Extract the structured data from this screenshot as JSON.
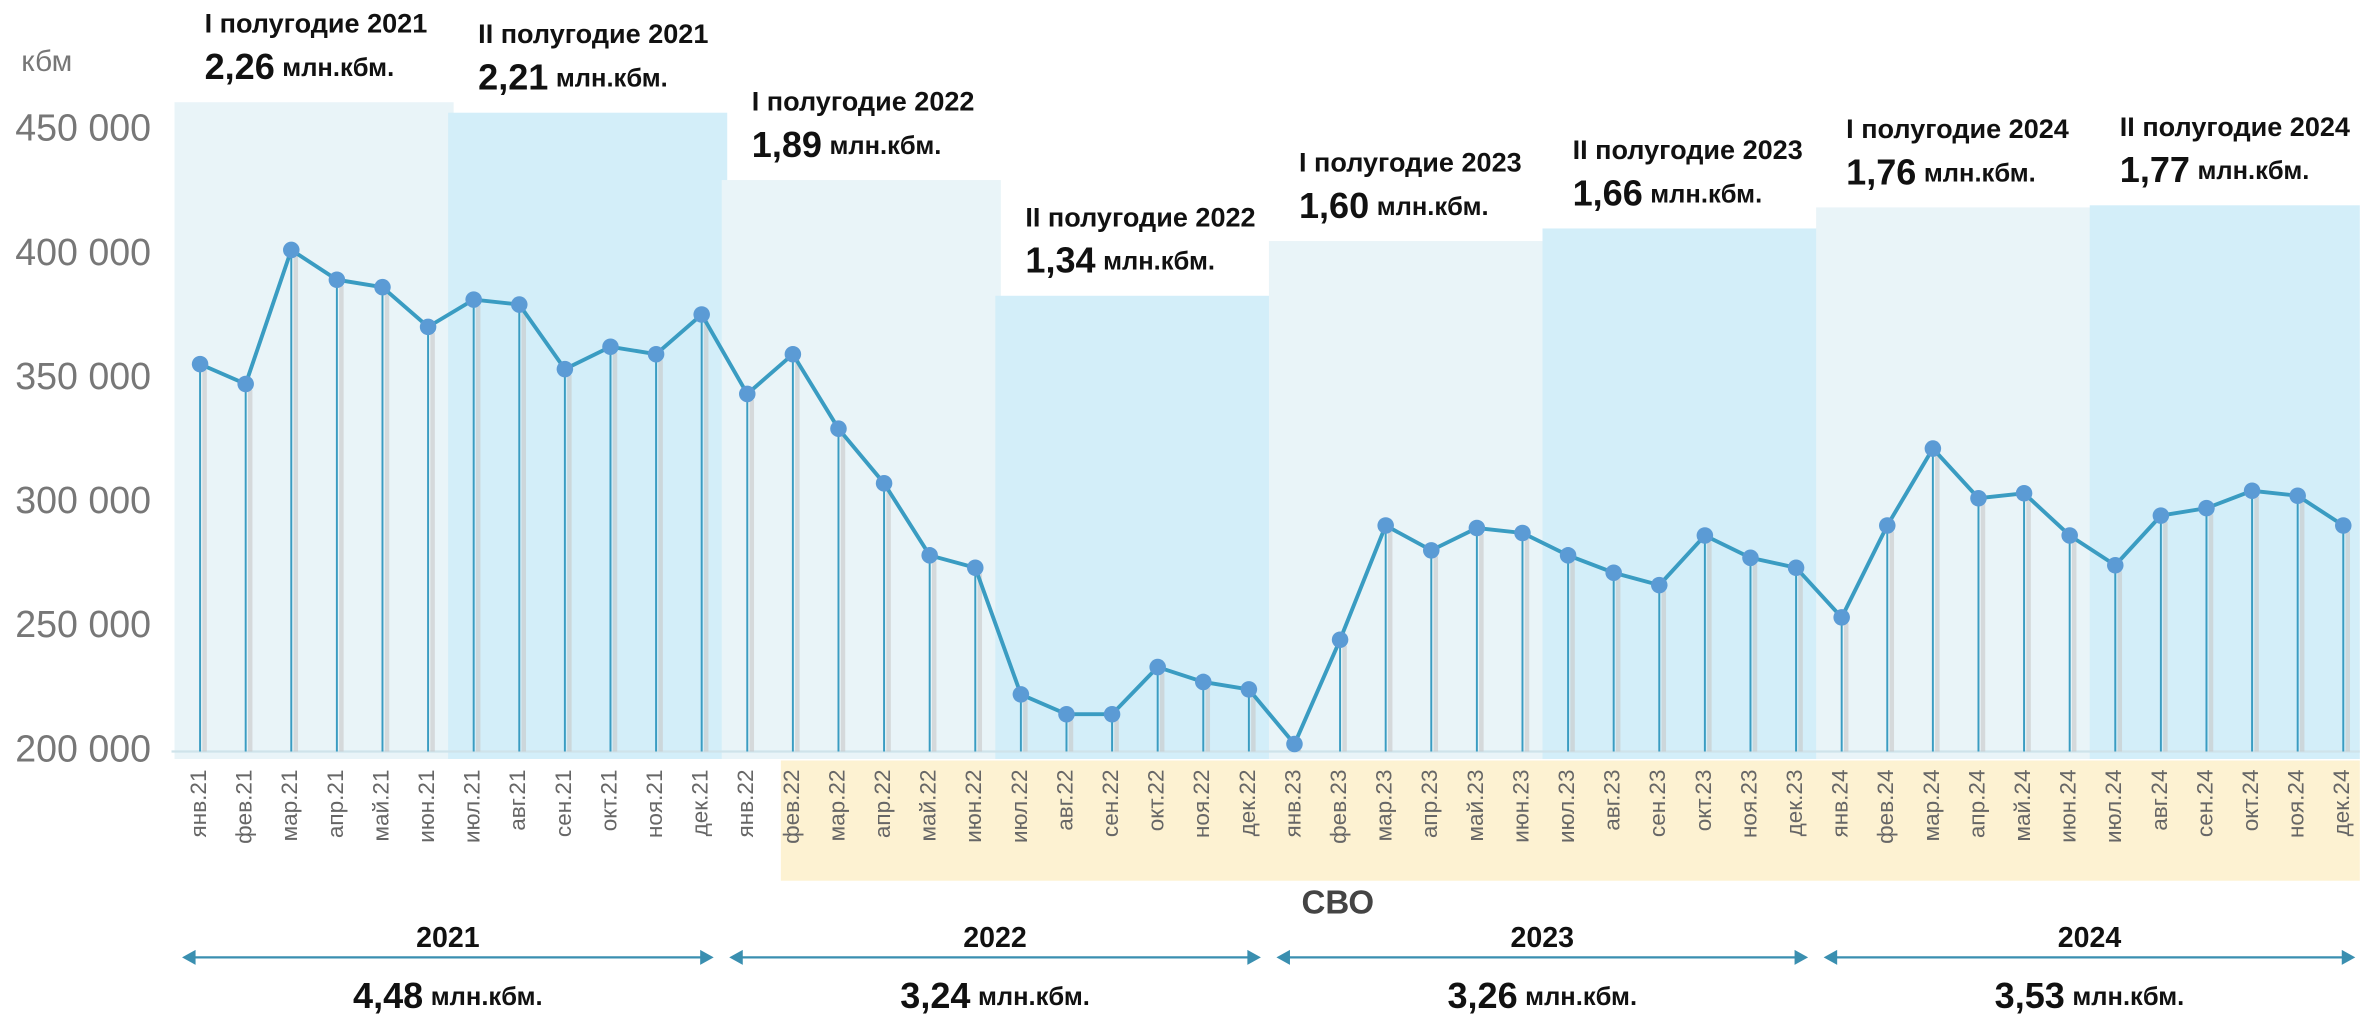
{
  "chart_data": {
    "type": "line",
    "y_label": "кбм",
    "categories": [
      "янв.21",
      "фев.21",
      "мар.21",
      "апр.21",
      "май.21",
      "июн.21",
      "июл.21",
      "авг.21",
      "сен.21",
      "окт.21",
      "ноя.21",
      "дек.21",
      "янв.22",
      "фев.22",
      "мар.22",
      "апр.22",
      "май.22",
      "июн.22",
      "июл.22",
      "авг.22",
      "сен.22",
      "окт.22",
      "ноя.22",
      "дек.22",
      "янв.23",
      "фев.23",
      "мар.23",
      "апр.23",
      "май.23",
      "июн.23",
      "июл.23",
      "авг.23",
      "сен.23",
      "окт.23",
      "ноя.23",
      "дек.23",
      "янв.24",
      "фев.24",
      "мар.24",
      "апр.24",
      "май.24",
      "июн.24",
      "июл.24",
      "авг.24",
      "сен.24",
      "окт.24",
      "ноя.24",
      "дек.24"
    ],
    "values": [
      356000,
      348000,
      402000,
      390000,
      387000,
      371000,
      382000,
      380000,
      354000,
      363000,
      360000,
      376000,
      344000,
      360000,
      330000,
      308000,
      279000,
      274000,
      223000,
      215000,
      215000,
      234000,
      228000,
      225000,
      203000,
      245000,
      291000,
      281000,
      290000,
      288000,
      279000,
      272000,
      267000,
      287000,
      278000,
      274000,
      254000,
      291000,
      322000,
      302000,
      304000,
      287000,
      275000,
      295000,
      298000,
      305000,
      303000,
      291000
    ],
    "color": "#3a9cc2",
    "marker_color": "#5b9bd5",
    "ylim": [
      197000,
      460000
    ],
    "yticks": [
      {
        "value": 200000,
        "label": "200 000"
      },
      {
        "value": 250000,
        "label": "250 000"
      },
      {
        "value": 300000,
        "label": "300 000"
      },
      {
        "value": 350000,
        "label": "350 000"
      },
      {
        "value": 400000,
        "label": "400 000"
      },
      {
        "value": 450000,
        "label": "450 000"
      }
    ],
    "half_years": [
      {
        "label": "I полугодие 2021",
        "value": 2.26,
        "value_label": "2,26",
        "unit": "млн.кбм."
      },
      {
        "label": "II полугодие 2021",
        "value": 2.21,
        "value_label": "2,21",
        "unit": "млн.кбм."
      },
      {
        "label": "I полугодие 2022",
        "value": 1.89,
        "value_label": "1,89",
        "unit": "млн.кбм."
      },
      {
        "label": "II полугодие 2022",
        "value": 1.34,
        "value_label": "1,34",
        "unit": "млн.кбм."
      },
      {
        "label": "I полугодие 2023",
        "value": 1.6,
        "value_label": "1,60",
        "unit": "млн.кбм."
      },
      {
        "label": "II полугодие 2023",
        "value": 1.66,
        "value_label": "1,66",
        "unit": "млн.кбм."
      },
      {
        "label": "I полугодие 2024",
        "value": 1.76,
        "value_label": "1,76",
        "unit": "млн.кбм."
      },
      {
        "label": "II полугодие 2024",
        "value": 1.77,
        "value_label": "1,77",
        "unit": "млн.кбм."
      }
    ],
    "years": [
      {
        "label": "2021",
        "value": 4.48,
        "value_label": "4,48",
        "unit": "млн.кбм."
      },
      {
        "label": "2022",
        "value": 3.24,
        "value_label": "3,24",
        "unit": "млн.кбм."
      },
      {
        "label": "2023",
        "value": 3.26,
        "value_label": "3,26",
        "unit": "млн.кбм."
      },
      {
        "label": "2024",
        "value": 3.53,
        "value_label": "3,53",
        "unit": "млн.кбм."
      }
    ],
    "svo": {
      "label": "СВО",
      "from": "фев.22"
    }
  }
}
